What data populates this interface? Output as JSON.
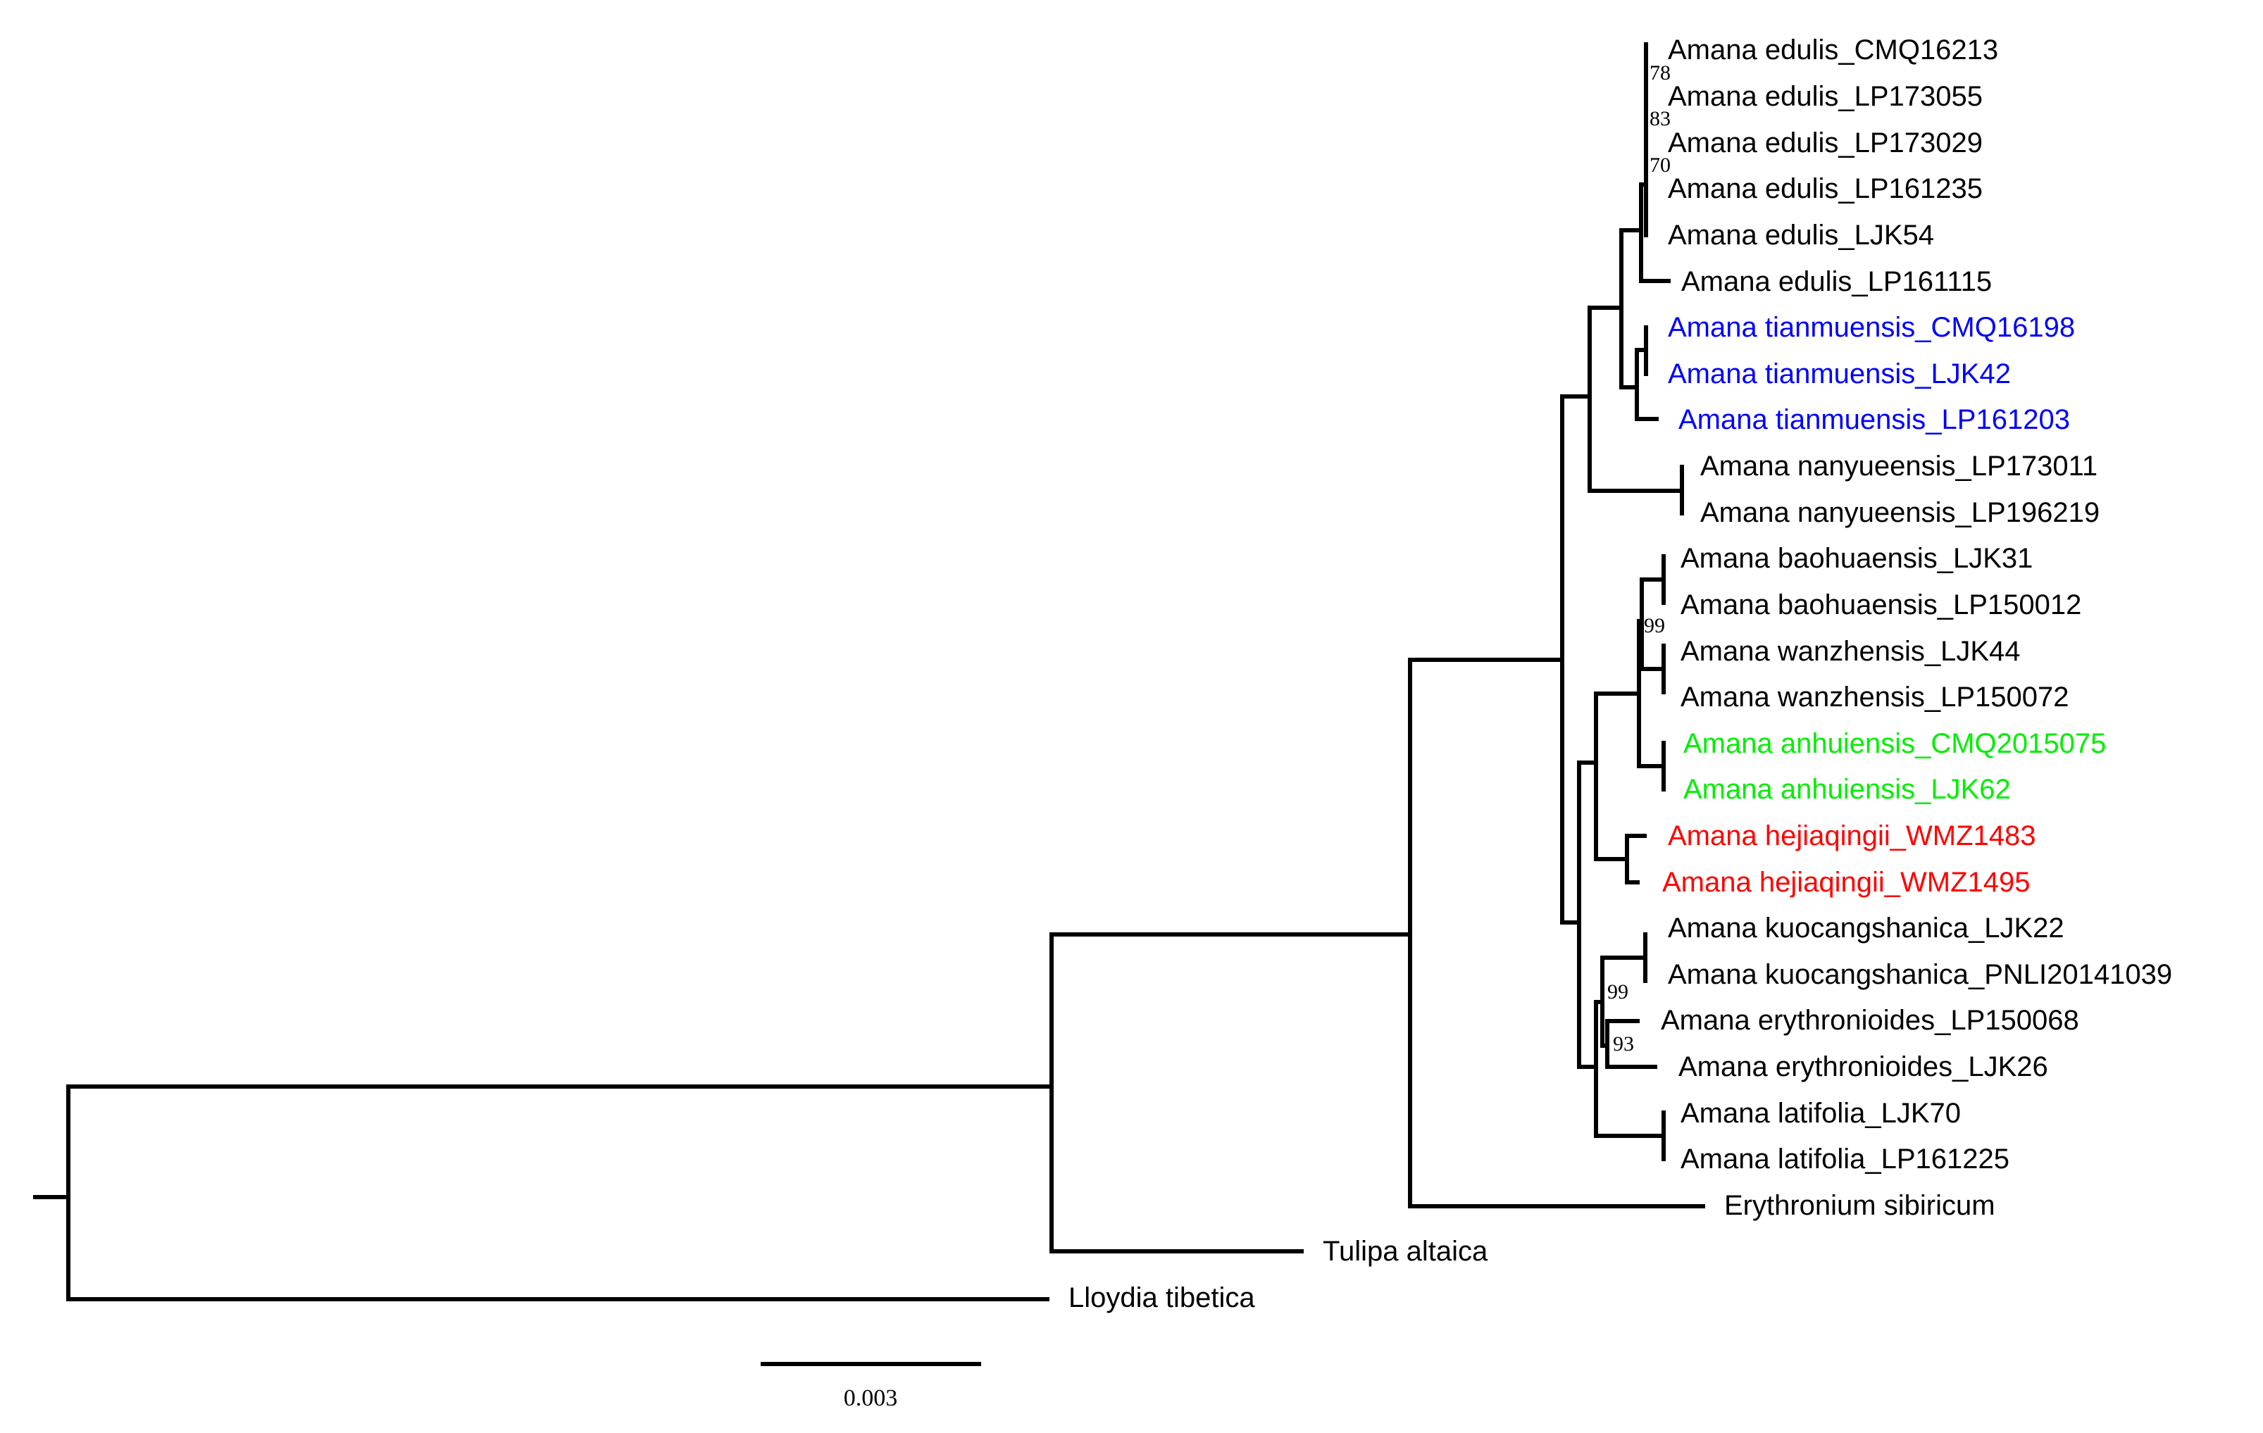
{
  "colors": {
    "default": "#000000",
    "tianmuensis": "#0000ff",
    "anhuiensis": "#00ee00",
    "hejiaqingii": "#ff0000"
  },
  "taxa": [
    {
      "label": "Amana edulis_CMQ16213",
      "color": "default"
    },
    {
      "label": "Amana edulis_LP173055",
      "color": "default"
    },
    {
      "label": "Amana edulis_LP173029",
      "color": "default"
    },
    {
      "label": "Amana edulis_LP161235",
      "color": "default"
    },
    {
      "label": "Amana edulis_LJK54",
      "color": "default"
    },
    {
      "label": "Amana edulis_LP161115",
      "color": "default"
    },
    {
      "label": "Amana tianmuensis_CMQ16198",
      "color": "tianmuensis"
    },
    {
      "label": "Amana tianmuensis_LJK42",
      "color": "tianmuensis"
    },
    {
      "label": "Amana tianmuensis_LP161203",
      "color": "tianmuensis"
    },
    {
      "label": "Amana nanyueensis_LP173011",
      "color": "default"
    },
    {
      "label": "Amana nanyueensis_LP196219",
      "color": "default"
    },
    {
      "label": "Amana baohuaensis_LJK31",
      "color": "default"
    },
    {
      "label": "Amana baohuaensis_LP150012",
      "color": "default"
    },
    {
      "label": "Amana wanzhensis_LJK44",
      "color": "default"
    },
    {
      "label": "Amana wanzhensis_LP150072",
      "color": "default"
    },
    {
      "label": "Amana anhuiensis_CMQ2015075",
      "color": "anhuiensis"
    },
    {
      "label": "Amana anhuiensis_LJK62",
      "color": "anhuiensis"
    },
    {
      "label": "Amana hejiaqingii_WMZ1483",
      "color": "hejiaqingii"
    },
    {
      "label": "Amana hejiaqingii_WMZ1495",
      "color": "hejiaqingii"
    },
    {
      "label": "Amana kuocangshanica_LJK22",
      "color": "default"
    },
    {
      "label": "Amana kuocangshanica_PNLI20141039",
      "color": "default"
    },
    {
      "label": "Amana erythronioides_LP150068",
      "color": "default"
    },
    {
      "label": "Amana erythronioides_LJK26",
      "color": "default"
    },
    {
      "label": "Amana latifolia_LJK70",
      "color": "default"
    },
    {
      "label": "Amana latifolia_LP161225",
      "color": "default"
    },
    {
      "label": "Erythronium sibiricum",
      "color": "default"
    },
    {
      "label": "Tulipa altaica",
      "color": "default"
    },
    {
      "label": "Lloydia tibetica",
      "color": "default"
    }
  ],
  "support_values": [
    "78",
    "83",
    "70",
    "99",
    "99",
    "93"
  ],
  "scale_bar": {
    "label": "0.003"
  }
}
